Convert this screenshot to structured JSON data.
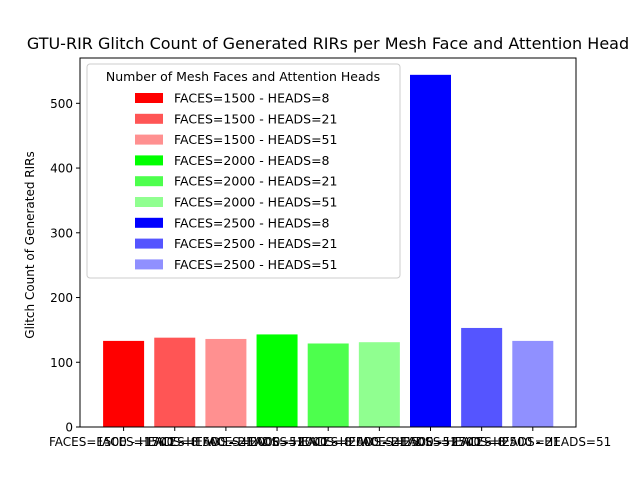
{
  "chart_data": {
    "type": "bar",
    "title": "GTU-RIR Glitch Count of Generated RIRs per Mesh Face and Attention Head",
    "xlabel": "",
    "ylabel": "Glitch Count of Generated RIRs",
    "ylim": [
      0,
      570
    ],
    "yticks": [
      0,
      100,
      200,
      300,
      400,
      500
    ],
    "grid": false,
    "legend_title": "Number of Mesh Faces and Attention Heads",
    "legend_position": "top-left",
    "categories": [
      "FACES=1500 - HEADS=8",
      "FACES=1500 - HEADS=21",
      "FACES=1500 - HEADS=51",
      "FACES=2000 - HEADS=8",
      "FACES=2000 - HEADS=21",
      "FACES=2000 - HEADS=51",
      "FACES=2500 - HEADS=8",
      "FACES=2500 - HEADS=21",
      "FACES=2500 - HEADS=51"
    ],
    "values": [
      133,
      138,
      136,
      143,
      129,
      131,
      544,
      153,
      133
    ],
    "colors": [
      "#ff0000",
      "#ff5555",
      "#ff9090",
      "#00ff00",
      "#4dff4d",
      "#90ff90",
      "#0000ff",
      "#5555ff",
      "#9090ff"
    ]
  }
}
